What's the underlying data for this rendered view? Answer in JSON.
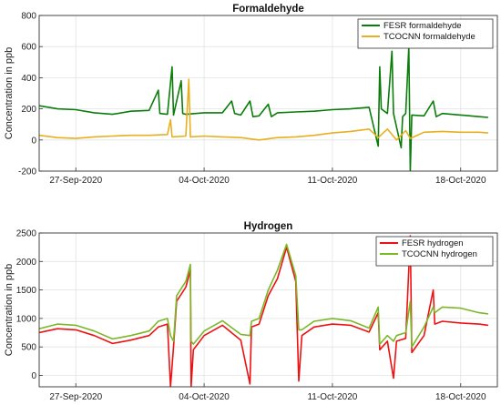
{
  "chart_data": [
    {
      "type": "line",
      "title": "Formaldehyde",
      "xlabel": "",
      "ylabel": "Concentration in ppb",
      "xlim": [
        "2020-09-25",
        "2020-10-20"
      ],
      "ylim": [
        -200,
        800
      ],
      "y_ticks": [
        -200,
        0,
        200,
        400,
        600,
        800
      ],
      "x_ticks": [
        "27-Sep-2020",
        "04-Oct-2020",
        "11-Oct-2020",
        "18-Oct-2020"
      ],
      "grid": true,
      "legend_position": "top-right",
      "series": [
        {
          "name": "FESR formaldehyde",
          "color": "#0a7d0a",
          "points": [
            [
              "2020-09-25",
              220
            ],
            [
              "2020-09-26",
              200
            ],
            [
              "2020-09-27",
              195
            ],
            [
              "2020-09-28",
              175
            ],
            [
              "2020-09-29",
              165
            ],
            [
              "2020-09-30",
              185
            ],
            [
              "2020-10-01",
              190
            ],
            [
              "2020-10-01T12:00",
              320
            ],
            [
              "2020-10-01T14:00",
              170
            ],
            [
              "2020-10-02",
              165
            ],
            [
              "2020-10-02T06:00",
              470
            ],
            [
              "2020-10-02T08:00",
              160
            ],
            [
              "2020-10-02T18:00",
              380
            ],
            [
              "2020-10-02T20:00",
              170
            ],
            [
              "2020-10-03",
              165
            ],
            [
              "2020-10-04",
              175
            ],
            [
              "2020-10-05",
              175
            ],
            [
              "2020-10-05T12:00",
              250
            ],
            [
              "2020-10-05T16:00",
              170
            ],
            [
              "2020-10-06",
              160
            ],
            [
              "2020-10-06T12:00",
              250
            ],
            [
              "2020-10-06T16:00",
              150
            ],
            [
              "2020-10-07",
              155
            ],
            [
              "2020-10-07T12:00",
              230
            ],
            [
              "2020-10-07T16:00",
              150
            ],
            [
              "2020-10-08",
              175
            ],
            [
              "2020-10-09",
              180
            ],
            [
              "2020-10-10",
              185
            ],
            [
              "2020-10-11",
              195
            ],
            [
              "2020-10-12",
              200
            ],
            [
              "2020-10-13",
              210
            ],
            [
              "2020-10-13T12:00",
              -40
            ],
            [
              "2020-10-13T14:00",
              470
            ],
            [
              "2020-10-13T16:00",
              200
            ],
            [
              "2020-10-14",
              170
            ],
            [
              "2020-10-14T06:00",
              570
            ],
            [
              "2020-10-14T08:00",
              170
            ],
            [
              "2020-10-14T18:00",
              -50
            ],
            [
              "2020-10-14T20:00",
              150
            ],
            [
              "2020-10-15",
              170
            ],
            [
              "2020-10-15T04:00",
              600
            ],
            [
              "2020-10-15T06:00",
              -200
            ],
            [
              "2020-10-15T08:00",
              160
            ],
            [
              "2020-10-16",
              155
            ],
            [
              "2020-10-16T12:00",
              250
            ],
            [
              "2020-10-16T16:00",
              150
            ],
            [
              "2020-10-17",
              170
            ],
            [
              "2020-10-18",
              160
            ],
            [
              "2020-10-19",
              150
            ],
            [
              "2020-10-19T12:00",
              145
            ]
          ]
        },
        {
          "name": "TCOCNN formaldehyde",
          "color": "#e8b020",
          "points": [
            [
              "2020-09-25",
              30
            ],
            [
              "2020-09-26",
              15
            ],
            [
              "2020-09-27",
              10
            ],
            [
              "2020-09-28",
              20
            ],
            [
              "2020-09-29",
              25
            ],
            [
              "2020-09-30",
              30
            ],
            [
              "2020-10-01",
              30
            ],
            [
              "2020-10-02",
              35
            ],
            [
              "2020-10-02T04:00",
              130
            ],
            [
              "2020-10-02T06:00",
              20
            ],
            [
              "2020-10-03",
              25
            ],
            [
              "2020-10-03T04:00",
              390
            ],
            [
              "2020-10-03T06:00",
              20
            ],
            [
              "2020-10-04",
              25
            ],
            [
              "2020-10-05",
              20
            ],
            [
              "2020-10-06",
              15
            ],
            [
              "2020-10-07",
              0
            ],
            [
              "2020-10-08",
              15
            ],
            [
              "2020-10-09",
              20
            ],
            [
              "2020-10-10",
              30
            ],
            [
              "2020-10-11",
              45
            ],
            [
              "2020-10-12",
              55
            ],
            [
              "2020-10-13",
              70
            ],
            [
              "2020-10-13T12:00",
              15
            ],
            [
              "2020-10-14",
              70
            ],
            [
              "2020-10-14T12:00",
              0
            ],
            [
              "2020-10-15",
              60
            ],
            [
              "2020-10-15T06:00",
              10
            ],
            [
              "2020-10-16",
              50
            ],
            [
              "2020-10-17",
              55
            ],
            [
              "2020-10-18",
              50
            ],
            [
              "2020-10-19",
              50
            ],
            [
              "2020-10-19T12:00",
              45
            ]
          ]
        }
      ]
    },
    {
      "type": "line",
      "title": "Hydrogen",
      "xlabel": "",
      "ylabel": "Concentration in ppb",
      "xlim": [
        "2020-09-25",
        "2020-10-20"
      ],
      "ylim": [
        -200,
        2500
      ],
      "y_ticks": [
        0,
        500,
        1000,
        1500,
        2000,
        2500
      ],
      "x_ticks": [
        "27-Sep-2020",
        "04-Oct-2020",
        "11-Oct-2020",
        "18-Oct-2020"
      ],
      "grid": true,
      "legend_position": "top-right",
      "series": [
        {
          "name": "FESR hydrogen",
          "color": "#ee1111",
          "points": [
            [
              "2020-09-25",
              750
            ],
            [
              "2020-09-26",
              820
            ],
            [
              "2020-09-27",
              800
            ],
            [
              "2020-09-28",
              700
            ],
            [
              "2020-09-29",
              560
            ],
            [
              "2020-09-30",
              620
            ],
            [
              "2020-10-01",
              700
            ],
            [
              "2020-10-01T12:00",
              850
            ],
            [
              "2020-10-02",
              900
            ],
            [
              "2020-10-02T04:00",
              -200
            ],
            [
              "2020-10-02T08:00",
              500
            ],
            [
              "2020-10-02T12:00",
              1300
            ],
            [
              "2020-10-03",
              1550
            ],
            [
              "2020-10-03T06:00",
              1850
            ],
            [
              "2020-10-03T07:00",
              -200
            ],
            [
              "2020-10-03T10:00",
              450
            ],
            [
              "2020-10-04",
              700
            ],
            [
              "2020-10-05",
              880
            ],
            [
              "2020-10-06",
              620
            ],
            [
              "2020-10-06T12:00",
              -150
            ],
            [
              "2020-10-06T14:00",
              850
            ],
            [
              "2020-10-07",
              900
            ],
            [
              "2020-10-07T12:00",
              1400
            ],
            [
              "2020-10-08",
              1700
            ],
            [
              "2020-10-08T12:00",
              2250
            ],
            [
              "2020-10-09",
              1650
            ],
            [
              "2020-10-09T04:00",
              -100
            ],
            [
              "2020-10-09T08:00",
              700
            ],
            [
              "2020-10-10",
              850
            ],
            [
              "2020-10-11",
              900
            ],
            [
              "2020-10-12",
              880
            ],
            [
              "2020-10-13",
              760
            ],
            [
              "2020-10-13T12:00",
              1100
            ],
            [
              "2020-10-13T14:00",
              450
            ],
            [
              "2020-10-14",
              600
            ],
            [
              "2020-10-14T08:00",
              -50
            ],
            [
              "2020-10-14T12:00",
              600
            ],
            [
              "2020-10-15",
              650
            ],
            [
              "2020-10-15T06:00",
              2450
            ],
            [
              "2020-10-15T08:00",
              400
            ],
            [
              "2020-10-16",
              700
            ],
            [
              "2020-10-16T12:00",
              1500
            ],
            [
              "2020-10-16T14:00",
              900
            ],
            [
              "2020-10-17",
              950
            ],
            [
              "2020-10-18",
              920
            ],
            [
              "2020-10-19",
              900
            ],
            [
              "2020-10-19T12:00",
              880
            ]
          ]
        },
        {
          "name": "TCOCNN hydrogen",
          "color": "#7ab828",
          "points": [
            [
              "2020-09-25",
              820
            ],
            [
              "2020-09-26",
              900
            ],
            [
              "2020-09-27",
              880
            ],
            [
              "2020-09-28",
              780
            ],
            [
              "2020-09-29",
              640
            ],
            [
              "2020-09-30",
              700
            ],
            [
              "2020-10-01",
              780
            ],
            [
              "2020-10-01T12:00",
              950
            ],
            [
              "2020-10-02",
              1000
            ],
            [
              "2020-10-02T04:00",
              700
            ],
            [
              "2020-10-02T08:00",
              600
            ],
            [
              "2020-10-02T12:00",
              1400
            ],
            [
              "2020-10-03",
              1650
            ],
            [
              "2020-10-03T06:00",
              1950
            ],
            [
              "2020-10-03T07:00",
              600
            ],
            [
              "2020-10-03T10:00",
              550
            ],
            [
              "2020-10-04",
              780
            ],
            [
              "2020-10-05",
              960
            ],
            [
              "2020-10-06",
              720
            ],
            [
              "2020-10-06T12:00",
              700
            ],
            [
              "2020-10-06T14:00",
              950
            ],
            [
              "2020-10-07",
              1000
            ],
            [
              "2020-10-07T12:00",
              1500
            ],
            [
              "2020-10-08",
              1850
            ],
            [
              "2020-10-08T12:00",
              2300
            ],
            [
              "2020-10-09",
              1750
            ],
            [
              "2020-10-09T04:00",
              800
            ],
            [
              "2020-10-09T08:00",
              800
            ],
            [
              "2020-10-10",
              950
            ],
            [
              "2020-10-11",
              1000
            ],
            [
              "2020-10-12",
              960
            ],
            [
              "2020-10-13",
              830
            ],
            [
              "2020-10-13T12:00",
              1200
            ],
            [
              "2020-10-13T14:00",
              550
            ],
            [
              "2020-10-14",
              700
            ],
            [
              "2020-10-14T08:00",
              600
            ],
            [
              "2020-10-14T12:00",
              700
            ],
            [
              "2020-10-15",
              750
            ],
            [
              "2020-10-15T06:00",
              1300
            ],
            [
              "2020-10-15T08:00",
              500
            ],
            [
              "2020-10-16",
              850
            ],
            [
              "2020-10-16T12:00",
              1200
            ],
            [
              "2020-10-16T14:00",
              1100
            ],
            [
              "2020-10-17",
              1200
            ],
            [
              "2020-10-18",
              1180
            ],
            [
              "2020-10-19",
              1100
            ],
            [
              "2020-10-19T12:00",
              1080
            ]
          ]
        }
      ]
    }
  ]
}
